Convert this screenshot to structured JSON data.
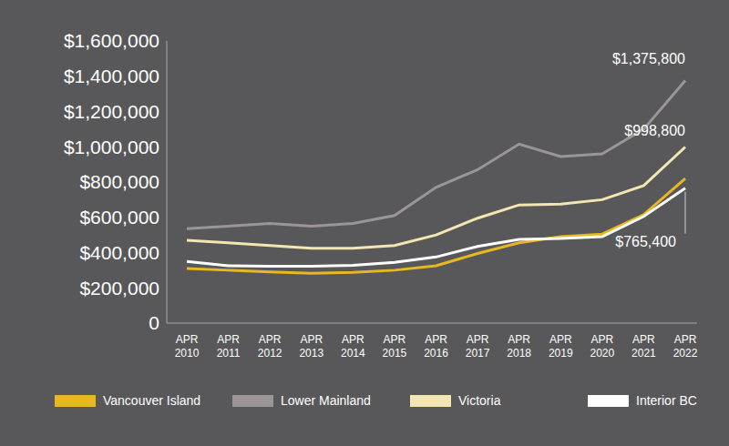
{
  "chart_data": {
    "type": "line",
    "categories": [
      "APR 2010",
      "APR 2011",
      "APR 2012",
      "APR 2013",
      "APR 2014",
      "APR 2015",
      "APR 2016",
      "APR 2017",
      "APR 2018",
      "APR 2019",
      "APR 2020",
      "APR 2021",
      "APR 2022"
    ],
    "series": [
      {
        "name": "Vancouver Island",
        "color": "#e8b820",
        "values": [
          310000,
          300000,
          290000,
          282000,
          288000,
          300000,
          325000,
          395000,
          455000,
          490000,
          505000,
          615000,
          820000
        ]
      },
      {
        "name": "Lower Mainland",
        "color": "#9b9598",
        "values": [
          535000,
          550000,
          565000,
          550000,
          565000,
          610000,
          770000,
          870000,
          1015000,
          945000,
          960000,
          1100000,
          1375800
        ],
        "value_labels": [
          null,
          null,
          null,
          null,
          null,
          null,
          null,
          null,
          null,
          null,
          null,
          null,
          "$1,375,800"
        ]
      },
      {
        "name": "Victoria",
        "color": "#f3e6b0",
        "values": [
          470000,
          455000,
          440000,
          425000,
          425000,
          440000,
          500000,
          595000,
          670000,
          675000,
          700000,
          780000,
          998800
        ],
        "value_labels": [
          null,
          null,
          null,
          null,
          null,
          null,
          null,
          null,
          null,
          null,
          null,
          null,
          "$998,800"
        ]
      },
      {
        "name": "Interior BC",
        "color": "#ffffff",
        "values": [
          350000,
          325000,
          322000,
          322000,
          328000,
          345000,
          375000,
          435000,
          475000,
          480000,
          490000,
          605000,
          765400
        ],
        "value_labels": [
          null,
          null,
          null,
          null,
          null,
          null,
          null,
          null,
          null,
          null,
          null,
          null,
          "$765,400"
        ]
      }
    ],
    "ylim": [
      0,
      1600000
    ],
    "yticks": [
      0,
      {
        "value": 200000,
        "label": "$200,000"
      },
      {
        "value": 400000,
        "label": "$400,000"
      },
      {
        "value": 600000,
        "label": "$600,000"
      },
      {
        "value": 800000,
        "label": "$800,000"
      },
      {
        "value": 1000000,
        "label": "$1,000,000"
      },
      {
        "value": 1200000,
        "label": "$1,200,000"
      },
      {
        "value": 1400000,
        "label": "$1,400,000"
      },
      {
        "value": 1600000,
        "label": "$1,600,000"
      }
    ],
    "grid": false,
    "legend": "bottom"
  }
}
